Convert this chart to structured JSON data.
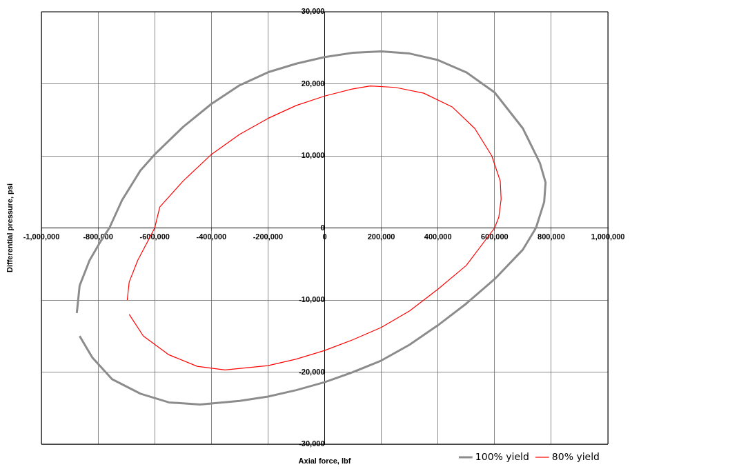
{
  "chart_data": {
    "type": "line",
    "xlabel": "Axial force, lbf",
    "ylabel": "Differential pressure, psi",
    "xlim": [
      -1000000,
      1000000
    ],
    "xticks": [
      {
        "value": -1000000,
        "label": "-1,000,000"
      },
      {
        "value": -800000,
        "label": "-800,000"
      },
      {
        "value": -600000,
        "label": "-600,000"
      },
      {
        "value": -400000,
        "label": "-400,000"
      },
      {
        "value": -200000,
        "label": "-200,000"
      },
      0,
      {
        "value": 200000,
        "label": "200,000"
      },
      {
        "value": 400000,
        "label": "400,000"
      },
      {
        "value": 600000,
        "label": "600,000"
      },
      {
        "value": 800000,
        "label": "800,000"
      },
      {
        "value": 1000000,
        "label": "1,000,000"
      }
    ],
    "ylim": [
      -30000,
      30000
    ],
    "yticks": [
      {
        "value": -30000,
        "label": "-30,000"
      },
      {
        "value": -20000,
        "label": "-20,000"
      },
      {
        "value": -10000,
        "label": "-10,000"
      },
      0,
      {
        "value": 10000,
        "label": "10,000"
      },
      {
        "value": 20000,
        "label": "20,000"
      },
      {
        "value": 30000,
        "label": "30,000"
      }
    ],
    "grid": true,
    "legend": "bottom right",
    "marker": "none",
    "line_style": "solid",
    "series": [
      {
        "name": "100% yield",
        "color": "#8c8c8c",
        "x": [
          -875000,
          -865000,
          -830000,
          -790000,
          -760000,
          -716000,
          -650000,
          -600000,
          -500000,
          -400000,
          -300000,
          -200000,
          -100000,
          0,
          100000,
          200000,
          300000,
          400000,
          500000,
          600000,
          700000,
          760000,
          780000,
          775000,
          746000,
          700000,
          600000,
          500000,
          400000,
          300000,
          200000,
          100000,
          0,
          -100000,
          -200000,
          -300000,
          -440000,
          -550000,
          -650000,
          -750000,
          -820000,
          -865000
        ],
        "values": [
          -11800,
          -8000,
          -4500,
          -1800,
          0,
          3800,
          8000,
          10200,
          14000,
          17200,
          19800,
          21600,
          22800,
          23700,
          24300,
          24500,
          24200,
          23300,
          21600,
          18800,
          13800,
          9000,
          6300,
          3600,
          0,
          -3000,
          -7100,
          -10500,
          -13500,
          -16200,
          -18400,
          -20000,
          -21400,
          -22500,
          -23400,
          -24000,
          -24500,
          -24200,
          -23000,
          -21000,
          -18000,
          -15000
        ]
      },
      {
        "name": "80% yield",
        "color": "#ff0000",
        "x": [
          -697000,
          -690000,
          -660000,
          -620000,
          -600000,
          -582000,
          -500000,
          -400000,
          -300000,
          -200000,
          -100000,
          0,
          100000,
          161000,
          250000,
          350000,
          450000,
          530000,
          590000,
          620000,
          623000,
          615000,
          600000,
          500000,
          400000,
          300000,
          200000,
          100000,
          0,
          -100000,
          -200000,
          -352000,
          -450000,
          -550000,
          -640000,
          -690000
        ],
        "values": [
          -10000,
          -7500,
          -4500,
          -1500,
          0,
          2900,
          6500,
          10200,
          13000,
          15200,
          17000,
          18300,
          19300,
          19700,
          19500,
          18700,
          16800,
          13800,
          10000,
          6500,
          4000,
          1500,
          0,
          -5200,
          -8500,
          -11500,
          -13800,
          -15500,
          -17000,
          -18200,
          -19100,
          -19700,
          -19200,
          -17600,
          -15000,
          -12000
        ]
      }
    ]
  }
}
